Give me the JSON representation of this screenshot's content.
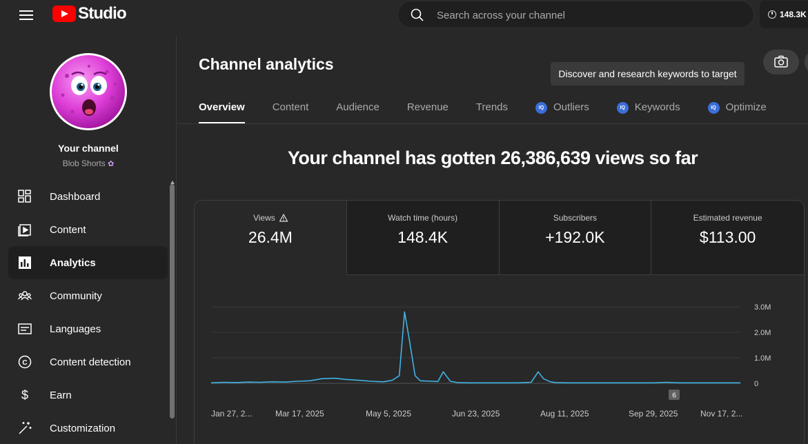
{
  "app": {
    "logo_text": "Studio",
    "search_placeholder": "Search across your channel",
    "top_badge": "148.3K"
  },
  "sidebar": {
    "title": "Your channel",
    "channel_name": "Blob Shorts",
    "items": [
      {
        "label": "Dashboard",
        "icon": "dashboard-icon",
        "active": false
      },
      {
        "label": "Content",
        "icon": "content-icon",
        "active": false
      },
      {
        "label": "Analytics",
        "icon": "analytics-icon",
        "active": true
      },
      {
        "label": "Community",
        "icon": "community-icon",
        "active": false
      },
      {
        "label": "Languages",
        "icon": "languages-icon",
        "active": false
      },
      {
        "label": "Content detection",
        "icon": "copyright-icon",
        "active": false
      },
      {
        "label": "Earn",
        "icon": "dollar-icon",
        "active": false
      },
      {
        "label": "Customization",
        "icon": "wand-icon",
        "active": false
      }
    ]
  },
  "main": {
    "title": "Channel analytics",
    "tooltip": "Discover and research keywords to target",
    "tabs": [
      {
        "label": "Overview",
        "active": true,
        "iq": false
      },
      {
        "label": "Content",
        "active": false,
        "iq": false
      },
      {
        "label": "Audience",
        "active": false,
        "iq": false
      },
      {
        "label": "Revenue",
        "active": false,
        "iq": false
      },
      {
        "label": "Trends",
        "active": false,
        "iq": false
      },
      {
        "label": "Outliers",
        "active": false,
        "iq": true
      },
      {
        "label": "Keywords",
        "active": false,
        "iq": true
      },
      {
        "label": "Optimize",
        "active": false,
        "iq": true
      }
    ],
    "iq_badge": "IQ",
    "headline": "Your channel has gotten 26,386,639 views so far",
    "metrics": [
      {
        "label": "Views",
        "value": "26.4M",
        "warning": true
      },
      {
        "label": "Watch time (hours)",
        "value": "148.4K",
        "warning": false
      },
      {
        "label": "Subscribers",
        "value": "+192.0K",
        "warning": false
      },
      {
        "label": "Estimated revenue",
        "value": "$113.00",
        "warning": false
      }
    ],
    "colors": {
      "line": "#41b4e6",
      "accent": "#ff0000"
    }
  },
  "chart_data": {
    "type": "line",
    "x_tick_labels": [
      "Jan 27, 2...",
      "Mar 17, 2025",
      "May 5, 2025",
      "Jun 23, 2025",
      "Aug 11, 2025",
      "Sep 29, 2025",
      "Nov 17, 2..."
    ],
    "y_tick_labels": [
      "3.0M",
      "2.0M",
      "1.0M",
      "0"
    ],
    "ylim": [
      0,
      3000000
    ],
    "annotation": "6",
    "grid": true,
    "series": [
      {
        "x": [
          "2025-01-27",
          "2025-02-03",
          "2025-02-10",
          "2025-02-17",
          "2025-02-24",
          "2025-03-03",
          "2025-03-10",
          "2025-03-17",
          "2025-03-24",
          "2025-03-31",
          "2025-04-07",
          "2025-04-14",
          "2025-04-21",
          "2025-04-28",
          "2025-05-05",
          "2025-05-10",
          "2025-05-14",
          "2025-05-17",
          "2025-05-20",
          "2025-05-23",
          "2025-05-26",
          "2025-06-02",
          "2025-06-05",
          "2025-06-08",
          "2025-06-12",
          "2025-06-16",
          "2025-06-23",
          "2025-06-30",
          "2025-07-07",
          "2025-07-14",
          "2025-07-21",
          "2025-07-28",
          "2025-08-01",
          "2025-08-04",
          "2025-08-08",
          "2025-08-11",
          "2025-08-18",
          "2025-08-25",
          "2025-09-01",
          "2025-09-08",
          "2025-09-15",
          "2025-09-22",
          "2025-09-29",
          "2025-10-06",
          "2025-10-13",
          "2025-10-20",
          "2025-10-27",
          "2025-11-03",
          "2025-11-10",
          "2025-11-17",
          "2025-11-24"
        ],
        "y": [
          20000,
          40000,
          30000,
          50000,
          40000,
          60000,
          50000,
          80000,
          100000,
          180000,
          200000,
          150000,
          120000,
          80000,
          60000,
          120000,
          300000,
          2800000,
          1600000,
          300000,
          100000,
          80000,
          70000,
          450000,
          80000,
          30000,
          20000,
          20000,
          20000,
          20000,
          20000,
          40000,
          450000,
          180000,
          60000,
          30000,
          20000,
          20000,
          20000,
          20000,
          20000,
          20000,
          20000,
          20000,
          40000,
          20000,
          20000,
          20000,
          20000,
          20000,
          20000
        ]
      }
    ]
  }
}
